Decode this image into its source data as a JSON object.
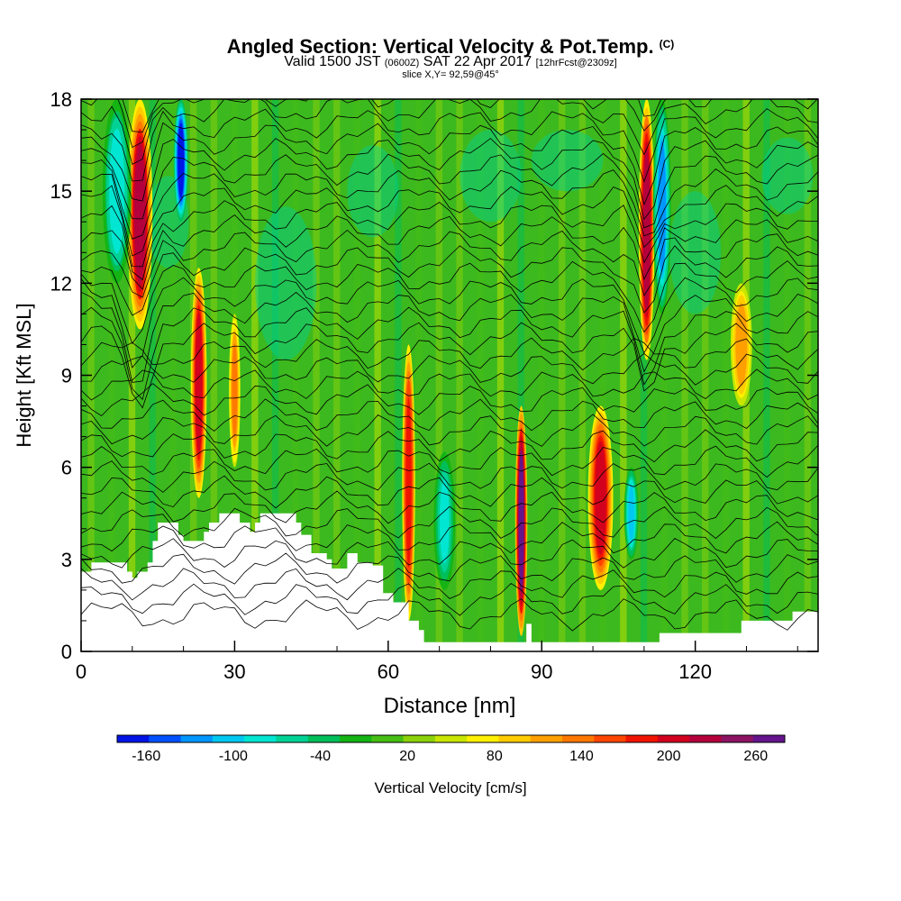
{
  "header": {
    "title": "Angled Section: Vertical Velocity & Pot.Temp.",
    "title_tag": "(C)",
    "valid_pre": "Valid 1500 JST",
    "valid_utc": "(0600Z)",
    "valid_date": "SAT 22 Apr 2017",
    "valid_fcst": "[12hrFcst@2309z]",
    "slice": "slice X,Y= 92,59@45°"
  },
  "chart_data": {
    "type": "heatmap",
    "xlabel": "Distance [nm]",
    "ylabel": "Height [Kft MSL]",
    "xlim": [
      0,
      144
    ],
    "ylim": [
      0,
      18
    ],
    "xticks": [
      0,
      30,
      60,
      90,
      120
    ],
    "yticks": [
      0,
      3,
      6,
      9,
      12,
      15,
      18
    ],
    "colorbar": {
      "label": "Vertical Velocity [cm/s]",
      "range": [
        -180,
        280
      ],
      "tick_labels": [
        -160,
        -100,
        -40,
        20,
        80,
        140,
        200,
        260
      ],
      "colors": [
        "#0014e6",
        "#0050ff",
        "#0096ff",
        "#00c8f0",
        "#00e6d2",
        "#00d296",
        "#00be5a",
        "#14b414",
        "#46be14",
        "#8cd20a",
        "#c8e600",
        "#fff000",
        "#ffcc00",
        "#ffa000",
        "#ff7800",
        "#ff4600",
        "#f01400",
        "#d2001e",
        "#b4003c",
        "#8c1464",
        "#64148c"
      ]
    },
    "terrain_heights_kft": [
      [
        0,
        2.6
      ],
      [
        2,
        2.9
      ],
      [
        8,
        2.9
      ],
      [
        9,
        2.6
      ],
      [
        10,
        2.4
      ],
      [
        11,
        2.6
      ],
      [
        13,
        2.9
      ],
      [
        14,
        3.6
      ],
      [
        15,
        4.2
      ],
      [
        18,
        4.2
      ],
      [
        19,
        3.8
      ],
      [
        20,
        3.6
      ],
      [
        23,
        3.6
      ],
      [
        24,
        3.9
      ],
      [
        25,
        4.2
      ],
      [
        27,
        4.5
      ],
      [
        30,
        4.5
      ],
      [
        31,
        4.2
      ],
      [
        33,
        3.9
      ],
      [
        34,
        4.2
      ],
      [
        35,
        4.5
      ],
      [
        41,
        4.5
      ],
      [
        42,
        4.2
      ],
      [
        43,
        3.8
      ],
      [
        45,
        3.2
      ],
      [
        48,
        3.0
      ],
      [
        49,
        2.7
      ],
      [
        52,
        3.2
      ],
      [
        54,
        2.9
      ],
      [
        57,
        2.8
      ],
      [
        59,
        1.9
      ],
      [
        61,
        1.6
      ],
      [
        63,
        1.6
      ],
      [
        64,
        1.0
      ],
      [
        66,
        0.7
      ],
      [
        67,
        0.3
      ],
      [
        86,
        0.3
      ],
      [
        87,
        0.9
      ],
      [
        88,
        0.3
      ],
      [
        112,
        0.3
      ],
      [
        113,
        0.6
      ],
      [
        128,
        0.6
      ],
      [
        129,
        1.0
      ],
      [
        138,
        1.0
      ],
      [
        139,
        1.3
      ],
      [
        144,
        1.3
      ]
    ],
    "updraft_columns": [
      {
        "x": 11.5,
        "width": 3.5,
        "y_from": 10.5,
        "y_to": 18,
        "peak": 220
      },
      {
        "x": 23.0,
        "width": 2.2,
        "y_from": 5.0,
        "y_to": 12.5,
        "peak": 210
      },
      {
        "x": 30.0,
        "width": 1.6,
        "y_from": 6.0,
        "y_to": 11.0,
        "peak": 140
      },
      {
        "x": 64.0,
        "width": 1.8,
        "y_from": 1.0,
        "y_to": 10.0,
        "peak": 190
      },
      {
        "x": 86.0,
        "width": 1.7,
        "y_from": 0.5,
        "y_to": 8.0,
        "peak": 260
      },
      {
        "x": 101.5,
        "width": 3.5,
        "y_from": 2.0,
        "y_to": 8.0,
        "peak": 210
      },
      {
        "x": 110.5,
        "width": 2.2,
        "y_from": 9.5,
        "y_to": 18,
        "peak": 230
      },
      {
        "x": 129.0,
        "width": 3.0,
        "y_from": 8.0,
        "y_to": 12.0,
        "peak": 120
      }
    ],
    "downdraft_columns": [
      {
        "x": 7.0,
        "width": 4.0,
        "y_from": 12,
        "y_to": 18,
        "peak": -90
      },
      {
        "x": 19.5,
        "width": 2.0,
        "y_from": 14,
        "y_to": 18,
        "peak": -170
      },
      {
        "x": 71.0,
        "width": 3.0,
        "y_from": 2.0,
        "y_to": 6.5,
        "peak": -80
      },
      {
        "x": 107.5,
        "width": 2.0,
        "y_from": 3.0,
        "y_to": 6.0,
        "peak": -100
      },
      {
        "x": 113.5,
        "width": 2.5,
        "y_from": 11.0,
        "y_to": 18,
        "peak": -120
      }
    ]
  }
}
